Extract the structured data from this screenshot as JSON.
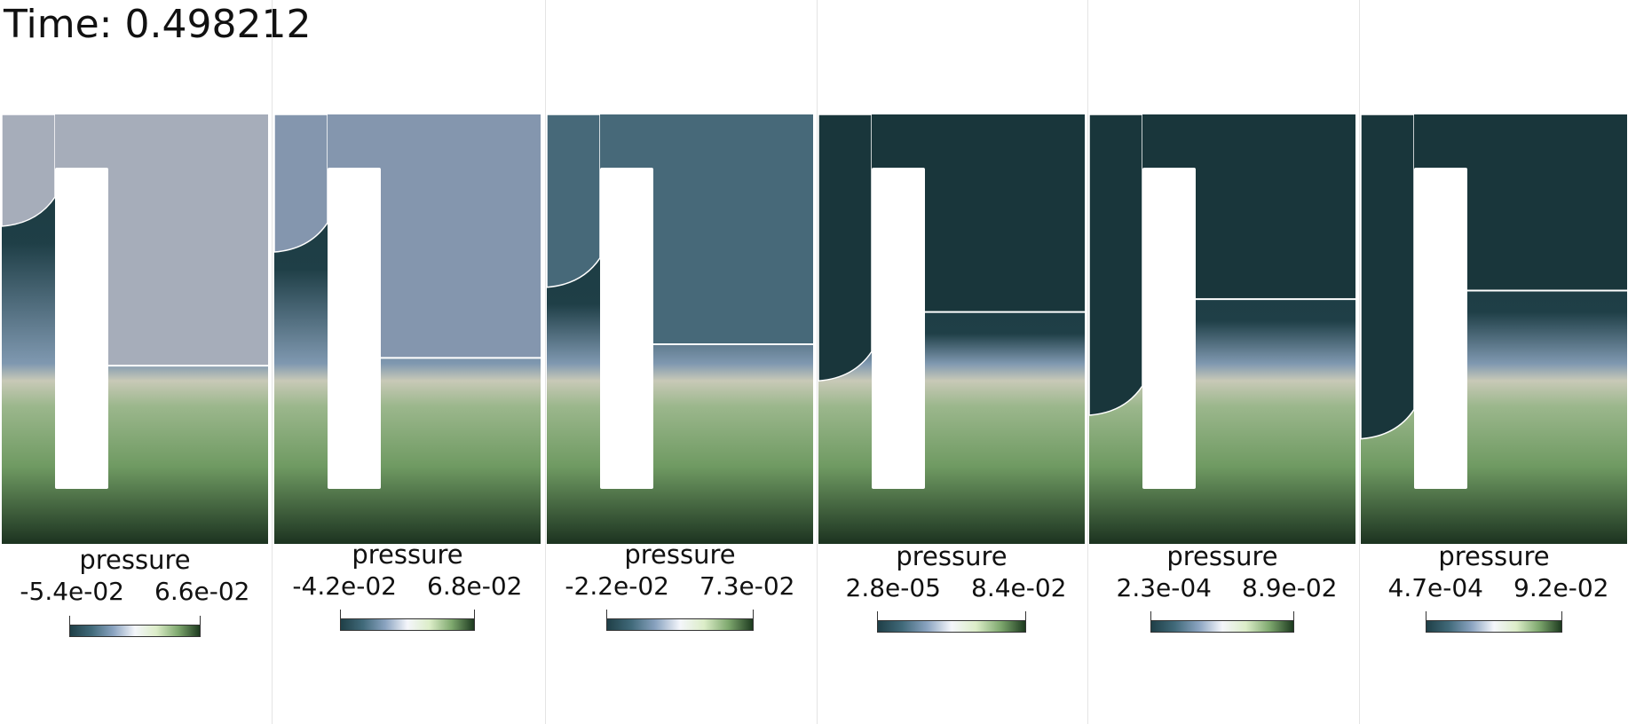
{
  "time_label": "Time: 0.498212",
  "colormap": [
    "#1f3f47",
    "#416a7a",
    "#8aa3c0",
    "#f4f6fb",
    "#dcedc8",
    "#7ea86e",
    "#1d3a1f"
  ],
  "panels": [
    {
      "id": 1,
      "colorbar_title": "pressure",
      "range_min": "-5.4e-02",
      "range_max": "6.6e-02",
      "upper_color": "#a6adba",
      "interface_left_level": 0.25,
      "interface_right_level": 0.585
    },
    {
      "id": 2,
      "colorbar_title": "pressure",
      "range_min": "-4.2e-02",
      "range_max": "6.8e-02",
      "upper_color": "#8496ae",
      "interface_left_level": 0.31,
      "interface_right_level": 0.567
    },
    {
      "id": 3,
      "colorbar_title": "pressure",
      "range_min": "-2.2e-02",
      "range_max": "7.3e-02",
      "upper_color": "#476979",
      "interface_left_level": 0.392,
      "interface_right_level": 0.535
    },
    {
      "id": 4,
      "colorbar_title": "pressure",
      "range_min": "2.8e-05",
      "range_max": "8.4e-02",
      "upper_color": "#19363b",
      "interface_left_level": 0.61,
      "interface_right_level": 0.46
    },
    {
      "id": 5,
      "colorbar_title": "pressure",
      "range_min": "2.3e-04",
      "range_max": "8.9e-02",
      "upper_color": "#19363b",
      "interface_left_level": 0.69,
      "interface_right_level": 0.43
    },
    {
      "id": 6,
      "colorbar_title": "pressure",
      "range_min": "4.7e-04",
      "range_max": "9.2e-02",
      "upper_color": "#19363b",
      "interface_left_level": 0.745,
      "interface_right_level": 0.41
    }
  ]
}
